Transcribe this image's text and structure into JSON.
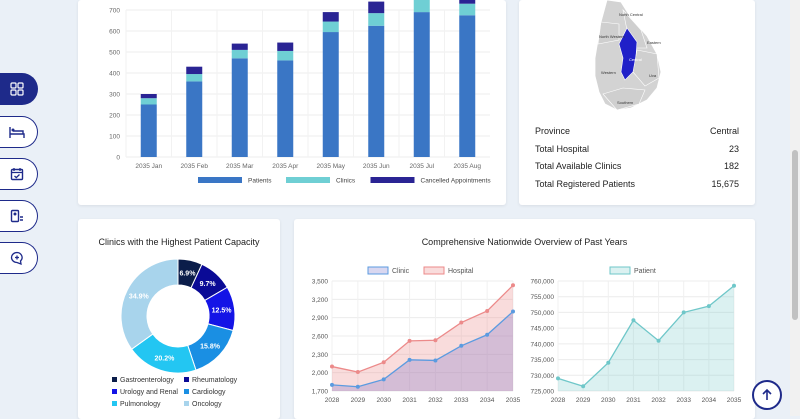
{
  "colors": {
    "patients": "#3a76c5",
    "clinics": "#6fcfd4",
    "cancelled": "#2a2494",
    "clinic_line": "#5b9be0",
    "hospital_line": "#ec8a8a",
    "patient_line": "#6fc7c9",
    "nav": "#1e2a8a"
  },
  "nav": {
    "items": [
      {
        "icon": "dashboard-icon",
        "active": true
      },
      {
        "icon": "hospital-bed-icon",
        "active": false
      },
      {
        "icon": "calendar-icon",
        "active": false
      },
      {
        "icon": "id-card-icon",
        "active": false
      },
      {
        "icon": "chat-plus-icon",
        "active": false
      }
    ]
  },
  "bar_chart": {
    "type": "bar",
    "categories": [
      "2035 Jan",
      "2035 Feb",
      "2035 Mar",
      "2035 Apr",
      "2035 May",
      "2035 Jun",
      "2035 Jul",
      "2035 Aug"
    ],
    "series": [
      {
        "name": "Patients",
        "values": [
          250,
          360,
          470,
          460,
          595,
          625,
          690,
          675
        ]
      },
      {
        "name": "Clinics",
        "values": [
          30,
          35,
          40,
          45,
          50,
          60,
          70,
          55
        ]
      },
      {
        "name": "Cancelled Appointments",
        "values": [
          20,
          35,
          30,
          40,
          45,
          55,
          60,
          50
        ]
      }
    ],
    "yticks": [
      "0",
      "100",
      "200",
      "300",
      "400",
      "500",
      "600",
      "700"
    ],
    "ylim": [
      0,
      700
    ]
  },
  "map": {
    "labels": [
      "North Central",
      "North Western",
      "Eastern",
      "Central",
      "Western",
      "Uva",
      "Southern"
    ],
    "highlight": "Central"
  },
  "province_info": {
    "rows": [
      {
        "label": "Province",
        "value": "Central"
      },
      {
        "label": "Total Hospital",
        "value": "23"
      },
      {
        "label": "Total Available Clinics",
        "value": "182"
      },
      {
        "label": "Total Registered Patients",
        "value": "15,675"
      }
    ]
  },
  "donut": {
    "title": "Clinics with the Highest Patient Capacity",
    "type": "pie",
    "slices": [
      {
        "name": "Gastroenterology",
        "value": 6.9,
        "label": "6.9%",
        "color": "#0b1d4a"
      },
      {
        "name": "Rheumatology",
        "value": 9.7,
        "label": "9.7%",
        "color": "#0a0a96"
      },
      {
        "name": "Urology and Renal",
        "value": 12.5,
        "label": "12.5%",
        "color": "#1414e6"
      },
      {
        "name": "Cardiology",
        "value": 15.8,
        "label": "15.8%",
        "color": "#1a8fe3"
      },
      {
        "name": "Pulmonology",
        "value": 20.2,
        "label": "20.2%",
        "color": "#23c6f2"
      },
      {
        "name": "Oncology",
        "value": 34.9,
        "label": "34.9%",
        "color": "#a8d4ec"
      }
    ]
  },
  "overview": {
    "title": "Comprehensive Nationwide Overview of Past Years",
    "left": {
      "type": "line",
      "legend": [
        "Clinic",
        "Hospital"
      ],
      "x": [
        "2028",
        "2029",
        "2030",
        "2031",
        "2032",
        "2033",
        "2034",
        "2035"
      ],
      "series": [
        {
          "name": "Clinic",
          "values": [
            1800,
            1770,
            1890,
            2210,
            2200,
            2440,
            2620,
            3000
          ]
        },
        {
          "name": "Hospital",
          "values": [
            2100,
            2010,
            2170,
            2520,
            2530,
            2820,
            3010,
            3430
          ]
        }
      ],
      "yticks": [
        "1,700",
        "2,000",
        "2,300",
        "2,600",
        "2,900",
        "3,200",
        "3,500"
      ],
      "ylim": [
        1700,
        3500
      ]
    },
    "right": {
      "type": "area",
      "legend": [
        "Patient"
      ],
      "x": [
        "2028",
        "2029",
        "2030",
        "2031",
        "2032",
        "2033",
        "2034",
        "2035"
      ],
      "series": [
        {
          "name": "Patient",
          "values": [
            729000,
            726500,
            734000,
            747500,
            741000,
            750000,
            752000,
            758500
          ]
        }
      ],
      "yticks": [
        "725,000",
        "730,000",
        "735,000",
        "740,000",
        "745,000",
        "750,000",
        "755,000",
        "760,000"
      ],
      "ylim": [
        725000,
        760000
      ]
    }
  }
}
